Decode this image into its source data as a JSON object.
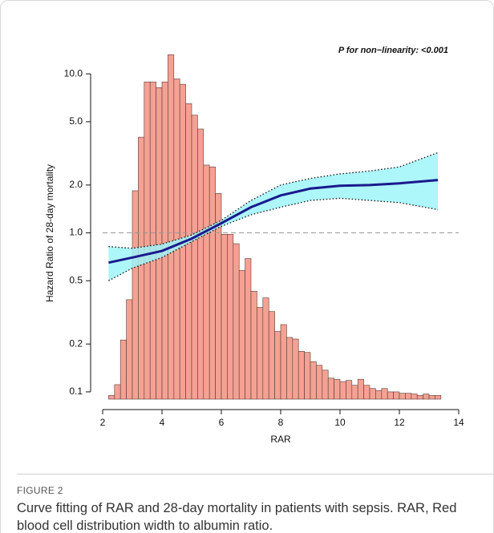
{
  "chart_data": {
    "type": "line",
    "y_label": "Hazard Ratio of 28-day mortality",
    "x_label": "RAR",
    "annotation": "P for non−linearity: <0.001",
    "log_y": true,
    "xlim": [
      2,
      14
    ],
    "xticks": [
      2,
      4,
      6,
      8,
      10,
      12,
      14
    ],
    "ylim": [
      0.09,
      16.7
    ],
    "yticks": [
      {
        "value": 10,
        "label": "10.0"
      },
      {
        "value": 5,
        "label": "5.0"
      },
      {
        "value": 2,
        "label": "2.0"
      },
      {
        "value": 1,
        "label": "1.0"
      },
      0.5,
      0.2,
      0.1
    ],
    "reference_line": 1,
    "x": [
      2.2,
      3,
      4,
      5,
      6,
      7,
      8,
      9,
      10,
      11,
      12,
      13.3
    ],
    "values": [
      0.65,
      0.7,
      0.77,
      0.92,
      1.15,
      1.45,
      1.72,
      1.9,
      1.98,
      2.0,
      2.05,
      2.15
    ],
    "lower": [
      0.5,
      0.6,
      0.7,
      0.88,
      1.1,
      1.3,
      1.45,
      1.6,
      1.65,
      1.6,
      1.55,
      1.4
    ],
    "upper": [
      0.82,
      0.8,
      0.85,
      0.97,
      1.2,
      1.6,
      2.0,
      2.2,
      2.35,
      2.45,
      2.6,
      3.2
    ],
    "color": "#1a1a8c",
    "band_color": "#9ff5f9",
    "histogram": {
      "color": "#f4a193",
      "bins": [
        2.2,
        2.4,
        2.6,
        2.8,
        3.0,
        3.2,
        3.4,
        3.6,
        3.8,
        4.0,
        4.2,
        4.4,
        4.6,
        4.8,
        5.0,
        5.2,
        5.4,
        5.6,
        5.8,
        6.0,
        6.2,
        6.4,
        6.6,
        6.8,
        7.0,
        7.2,
        7.4,
        7.6,
        7.8,
        8.0,
        8.2,
        8.4,
        8.6,
        8.8,
        9.0,
        9.2,
        9.4,
        9.6,
        9.8,
        10.0,
        10.2,
        10.4,
        10.6,
        10.8,
        11.0,
        11.2,
        11.4,
        11.6,
        11.8,
        12.0,
        12.2,
        12.4,
        12.6,
        12.8,
        13.0,
        13.2,
        13.4
      ],
      "values": [
        0.095,
        0.111,
        0.212,
        0.38,
        1.84,
        4.0,
        8.9,
        8.9,
        8.2,
        8.9,
        13.2,
        9.3,
        8.6,
        6.5,
        5.5,
        4.5,
        2.67,
        2.6,
        1.77,
        0.98,
        0.98,
        0.855,
        0.58,
        0.69,
        0.43,
        0.34,
        0.39,
        0.32,
        0.24,
        0.265,
        0.22,
        0.215,
        0.18,
        0.177,
        0.155,
        0.147,
        0.137,
        0.122,
        0.12,
        0.116,
        0.118,
        0.11,
        0.12,
        0.11,
        0.105,
        0.102,
        0.105,
        0.1,
        0.1,
        0.098,
        0.098,
        0.097,
        0.095,
        0.097,
        0.095,
        0.095
      ]
    }
  },
  "caption": {
    "label": "FIGURE 2",
    "text": "Curve fitting of RAR and 28-day mortality in patients with sepsis. RAR, Red blood cell distribution width to albumin ratio."
  }
}
